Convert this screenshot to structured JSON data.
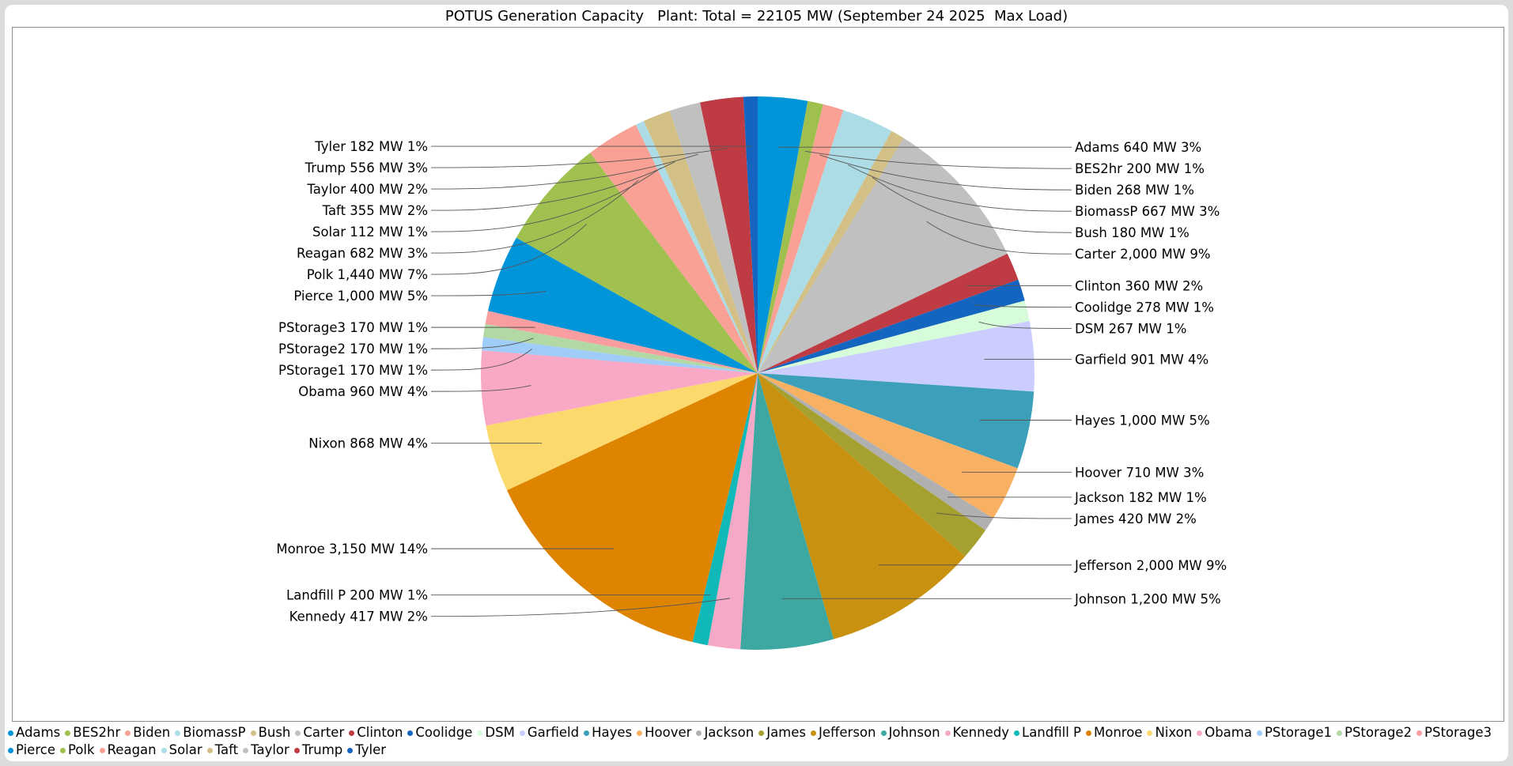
{
  "chart_data": {
    "type": "pie",
    "title": "POTUS Generation Capacity   Plant: Total = 22105 MW (September 24 2025  Max Load)",
    "legend_position": "bottom",
    "slices": [
      {
        "name": "Adams",
        "value": 640,
        "label": "Adams 640 MW 3%",
        "color": "#0095d9"
      },
      {
        "name": "BES2hr",
        "value": 200,
        "label": "BES2hr 200 MW 1%",
        "color": "#9fc04f"
      },
      {
        "name": "Biden",
        "value": 268,
        "label": "Biden 268 MW 1%",
        "color": "#f9a195"
      },
      {
        "name": "BiomassP",
        "value": 667,
        "label": "BiomassP 667 MW 3%",
        "color": "#acdce5"
      },
      {
        "name": "Bush",
        "value": 180,
        "label": "Bush 180 MW 1%",
        "color": "#d3c087"
      },
      {
        "name": "Carter",
        "value": 2000,
        "label": "Carter 2,000 MW 9%",
        "color": "#c0c0c0"
      },
      {
        "name": "Clinton",
        "value": 360,
        "label": "Clinton 360 MW 2%",
        "color": "#bf3b43"
      },
      {
        "name": "Coolidge",
        "value": 278,
        "label": "Coolidge 278 MW 1%",
        "color": "#1465c0"
      },
      {
        "name": "DSM",
        "value": 267,
        "label": "DSM 267 MW 1%",
        "color": "#d6fcda"
      },
      {
        "name": "Garfield",
        "value": 901,
        "label": "Garfield 901 MW 4%",
        "color": "#cccdff"
      },
      {
        "name": "Hayes",
        "value": 1000,
        "label": "Hayes 1,000 MW 5%",
        "color": "#3ca0ba"
      },
      {
        "name": "Hoover",
        "value": 710,
        "label": "Hoover 710 MW 3%",
        "color": "#f8b063"
      },
      {
        "name": "Jackson",
        "value": 182,
        "label": "Jackson 182 MW 1%",
        "color": "#b0b0b0"
      },
      {
        "name": "James",
        "value": 420,
        "label": "James 420 MW 2%",
        "color": "#a5a130"
      },
      {
        "name": "Jefferson",
        "value": 2000,
        "label": "Jefferson 2,000 MW 9%",
        "color": "#c8910f"
      },
      {
        "name": "Johnson",
        "value": 1200,
        "label": "Johnson 1,200 MW 5%",
        "color": "#3da8a2"
      },
      {
        "name": "Kennedy",
        "value": 417,
        "label": "Kennedy 417 MW 2%",
        "color": "#f6a9c7"
      },
      {
        "name": "Landfill P",
        "value": 200,
        "label": "Landfill P 200 MW 1%",
        "color": "#10b9b8"
      },
      {
        "name": "Monroe",
        "value": 3150,
        "label": "Monroe 3,150 MW 14%",
        "color": "#de8400"
      },
      {
        "name": "Nixon",
        "value": 868,
        "label": "Nixon 868 MW 4%",
        "color": "#fcd96c"
      },
      {
        "name": "Obama",
        "value": 960,
        "label": "Obama 960 MW 4%",
        "color": "#f9a9c6"
      },
      {
        "name": "PStorage1",
        "value": 170,
        "label": "PStorage1 170 MW 1%",
        "color": "#9fcdf8"
      },
      {
        "name": "PStorage2",
        "value": 170,
        "label": "PStorage2 170 MW 1%",
        "color": "#b2d9a3"
      },
      {
        "name": "PStorage3",
        "value": 170,
        "label": "PStorage3 170 MW 1%",
        "color": "#f99ea0"
      },
      {
        "name": "Pierce",
        "value": 1000,
        "label": "Pierce 1,000 MW 5%",
        "color": "#0095d9"
      },
      {
        "name": "Polk",
        "value": 1440,
        "label": "Polk 1,440 MW 7%",
        "color": "#a0c04f"
      },
      {
        "name": "Reagan",
        "value": 682,
        "label": "Reagan 682 MW 3%",
        "color": "#f9a195"
      },
      {
        "name": "Solar",
        "value": 112,
        "label": "Solar 112 MW 1%",
        "color": "#acdce5"
      },
      {
        "name": "Taft",
        "value": 355,
        "label": "Taft 355 MW 2%",
        "color": "#d3c087"
      },
      {
        "name": "Taylor",
        "value": 400,
        "label": "Taylor 400 MW 2%",
        "color": "#c0c0c0"
      },
      {
        "name": "Trump",
        "value": 556,
        "label": "Trump 556 MW 3%",
        "color": "#bf3b43"
      },
      {
        "name": "Tyler",
        "value": 182,
        "label": "Tyler 182 MW 1%",
        "color": "#1465c0"
      }
    ]
  }
}
